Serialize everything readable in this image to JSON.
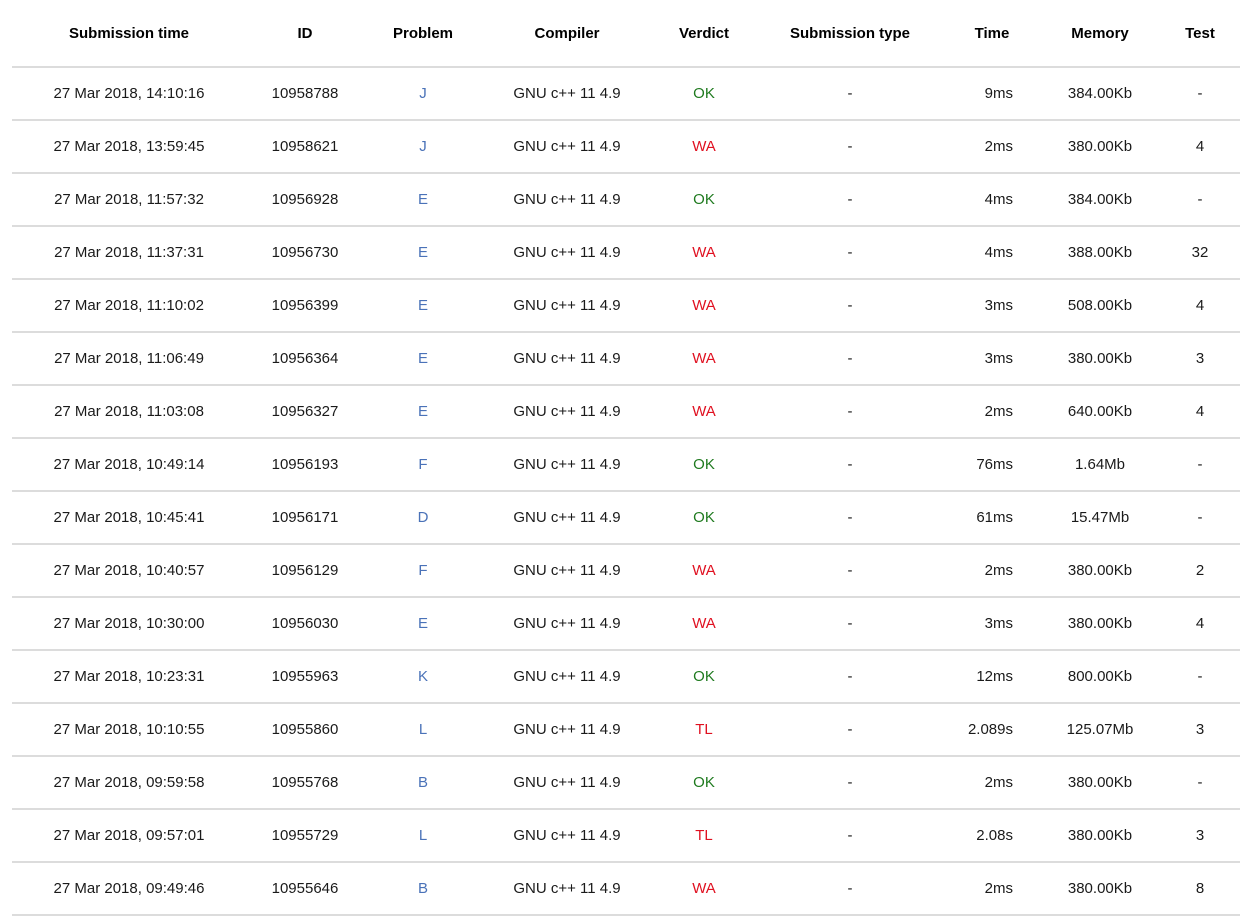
{
  "colors": {
    "accepted_green": "#1f7a1f",
    "rejected_red": "#e01020",
    "problem_link_blue": "#4a72b8",
    "row_divider_gray": "#dcdcdc",
    "header_text": "#000000",
    "body_text": "#1a1a1a",
    "background": "#ffffff"
  },
  "table": {
    "columns": [
      {
        "key": "submission_time",
        "label": "Submission time"
      },
      {
        "key": "id",
        "label": "ID"
      },
      {
        "key": "problem",
        "label": "Problem"
      },
      {
        "key": "compiler",
        "label": "Compiler"
      },
      {
        "key": "verdict",
        "label": "Verdict"
      },
      {
        "key": "submission_type",
        "label": "Submission type"
      },
      {
        "key": "time",
        "label": "Time"
      },
      {
        "key": "memory",
        "label": "Memory"
      },
      {
        "key": "test",
        "label": "Test"
      }
    ],
    "rows": [
      {
        "submission_time": "27 Mar 2018, 14:10:16",
        "id": "10958788",
        "problem": "J",
        "compiler": "GNU c++ 11 4.9",
        "verdict": "OK",
        "verdict_status": "accepted",
        "submission_type": "-",
        "time": "9ms",
        "memory": "384.00Kb",
        "test": "-"
      },
      {
        "submission_time": "27 Mar 2018, 13:59:45",
        "id": "10958621",
        "problem": "J",
        "compiler": "GNU c++ 11 4.9",
        "verdict": "WA",
        "verdict_status": "rejected",
        "submission_type": "-",
        "time": "2ms",
        "memory": "380.00Kb",
        "test": "4"
      },
      {
        "submission_time": "27 Mar 2018, 11:57:32",
        "id": "10956928",
        "problem": "E",
        "compiler": "GNU c++ 11 4.9",
        "verdict": "OK",
        "verdict_status": "accepted",
        "submission_type": "-",
        "time": "4ms",
        "memory": "384.00Kb",
        "test": "-"
      },
      {
        "submission_time": "27 Mar 2018, 11:37:31",
        "id": "10956730",
        "problem": "E",
        "compiler": "GNU c++ 11 4.9",
        "verdict": "WA",
        "verdict_status": "rejected",
        "submission_type": "-",
        "time": "4ms",
        "memory": "388.00Kb",
        "test": "32"
      },
      {
        "submission_time": "27 Mar 2018, 11:10:02",
        "id": "10956399",
        "problem": "E",
        "compiler": "GNU c++ 11 4.9",
        "verdict": "WA",
        "verdict_status": "rejected",
        "submission_type": "-",
        "time": "3ms",
        "memory": "508.00Kb",
        "test": "4"
      },
      {
        "submission_time": "27 Mar 2018, 11:06:49",
        "id": "10956364",
        "problem": "E",
        "compiler": "GNU c++ 11 4.9",
        "verdict": "WA",
        "verdict_status": "rejected",
        "submission_type": "-",
        "time": "3ms",
        "memory": "380.00Kb",
        "test": "3"
      },
      {
        "submission_time": "27 Mar 2018, 11:03:08",
        "id": "10956327",
        "problem": "E",
        "compiler": "GNU c++ 11 4.9",
        "verdict": "WA",
        "verdict_status": "rejected",
        "submission_type": "-",
        "time": "2ms",
        "memory": "640.00Kb",
        "test": "4"
      },
      {
        "submission_time": "27 Mar 2018, 10:49:14",
        "id": "10956193",
        "problem": "F",
        "compiler": "GNU c++ 11 4.9",
        "verdict": "OK",
        "verdict_status": "accepted",
        "submission_type": "-",
        "time": "76ms",
        "memory": "1.64Mb",
        "test": "-"
      },
      {
        "submission_time": "27 Mar 2018, 10:45:41",
        "id": "10956171",
        "problem": "D",
        "compiler": "GNU c++ 11 4.9",
        "verdict": "OK",
        "verdict_status": "accepted",
        "submission_type": "-",
        "time": "61ms",
        "memory": "15.47Mb",
        "test": "-"
      },
      {
        "submission_time": "27 Mar 2018, 10:40:57",
        "id": "10956129",
        "problem": "F",
        "compiler": "GNU c++ 11 4.9",
        "verdict": "WA",
        "verdict_status": "rejected",
        "submission_type": "-",
        "time": "2ms",
        "memory": "380.00Kb",
        "test": "2"
      },
      {
        "submission_time": "27 Mar 2018, 10:30:00",
        "id": "10956030",
        "problem": "E",
        "compiler": "GNU c++ 11 4.9",
        "verdict": "WA",
        "verdict_status": "rejected",
        "submission_type": "-",
        "time": "3ms",
        "memory": "380.00Kb",
        "test": "4"
      },
      {
        "submission_time": "27 Mar 2018, 10:23:31",
        "id": "10955963",
        "problem": "K",
        "compiler": "GNU c++ 11 4.9",
        "verdict": "OK",
        "verdict_status": "accepted",
        "submission_type": "-",
        "time": "12ms",
        "memory": "800.00Kb",
        "test": "-"
      },
      {
        "submission_time": "27 Mar 2018, 10:10:55",
        "id": "10955860",
        "problem": "L",
        "compiler": "GNU c++ 11 4.9",
        "verdict": "TL",
        "verdict_status": "rejected",
        "submission_type": "-",
        "time": "2.089s",
        "memory": "125.07Mb",
        "test": "3"
      },
      {
        "submission_time": "27 Mar 2018, 09:59:58",
        "id": "10955768",
        "problem": "B",
        "compiler": "GNU c++ 11 4.9",
        "verdict": "OK",
        "verdict_status": "accepted",
        "submission_type": "-",
        "time": "2ms",
        "memory": "380.00Kb",
        "test": "-"
      },
      {
        "submission_time": "27 Mar 2018, 09:57:01",
        "id": "10955729",
        "problem": "L",
        "compiler": "GNU c++ 11 4.9",
        "verdict": "TL",
        "verdict_status": "rejected",
        "submission_type": "-",
        "time": "2.08s",
        "memory": "380.00Kb",
        "test": "3"
      },
      {
        "submission_time": "27 Mar 2018, 09:49:46",
        "id": "10955646",
        "problem": "B",
        "compiler": "GNU c++ 11 4.9",
        "verdict": "WA",
        "verdict_status": "rejected",
        "submission_type": "-",
        "time": "2ms",
        "memory": "380.00Kb",
        "test": "8"
      }
    ]
  }
}
